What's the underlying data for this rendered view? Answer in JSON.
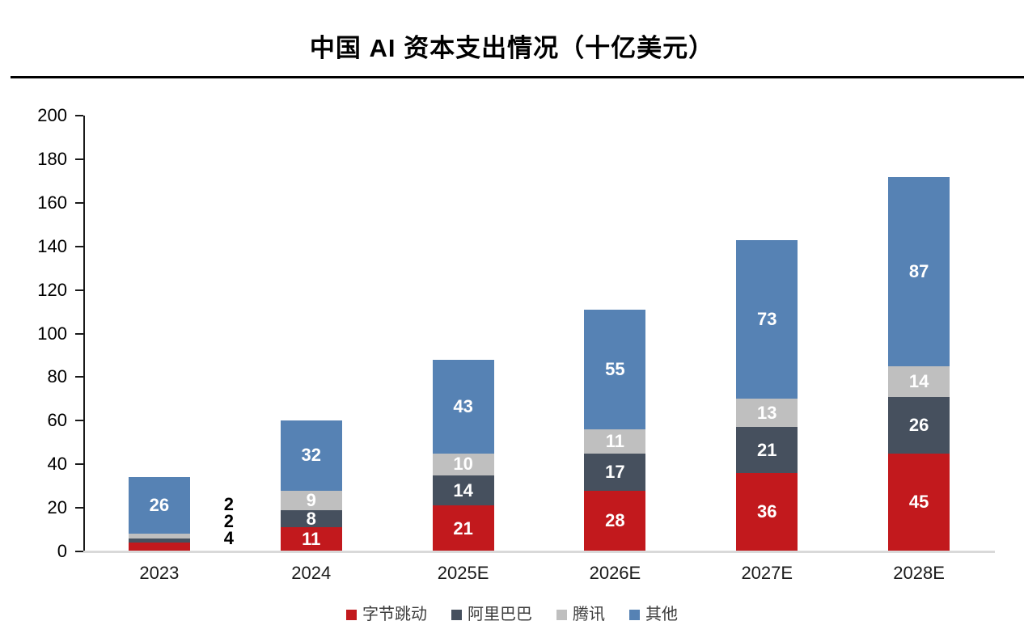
{
  "title": "中国 AI 资本支出情况（十亿美元）",
  "chart_data": {
    "type": "bar",
    "stacked": true,
    "title": "中国 AI 资本支出情况（十亿美元）",
    "xlabel": "",
    "ylabel": "",
    "categories": [
      "2023",
      "2024",
      "2025E",
      "2026E",
      "2027E",
      "2028E"
    ],
    "series": [
      {
        "name": "字节跳动",
        "color": "#c2191d",
        "values": [
          4,
          11,
          21,
          28,
          36,
          45
        ]
      },
      {
        "name": "阿里巴巴",
        "color": "#46505e",
        "values": [
          2,
          8,
          14,
          17,
          21,
          26
        ]
      },
      {
        "name": "腾讯",
        "color": "#bfbfbf",
        "values": [
          2,
          9,
          10,
          11,
          13,
          14
        ]
      },
      {
        "name": "其他",
        "color": "#5682b4",
        "values": [
          26,
          32,
          43,
          55,
          73,
          87
        ]
      }
    ],
    "totals": [
      34,
      60,
      88,
      111,
      143,
      172
    ],
    "ylim": [
      0,
      200
    ],
    "ytick_step": 20,
    "yticks": [
      0,
      20,
      40,
      60,
      80,
      100,
      120,
      140,
      160,
      180,
      200
    ],
    "grid": false,
    "legend_position": "bottom",
    "value_labels": true,
    "outside_label_threshold": 5,
    "inside_label_color": "#ffffff",
    "outside_label_color": "#000000",
    "axis_color": "#1a1a1a",
    "baseline_color": "#d9d9d9"
  }
}
